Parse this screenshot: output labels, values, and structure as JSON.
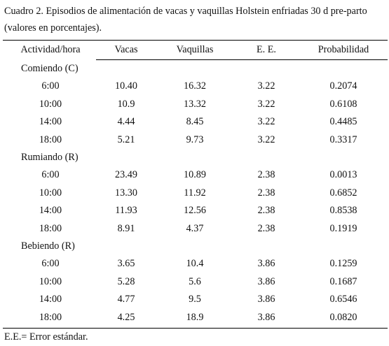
{
  "caption": {
    "line1": "Cuadro 2. Episodios de alimentación de vacas y vaquillas Holstein enfriadas 30 d pre-parto",
    "line2": "(valores en porcentajes)."
  },
  "columns": [
    "Actividad/hora",
    "Vacas",
    "Vaquillas",
    "E. E.",
    "Probabilidad"
  ],
  "groups": [
    {
      "label": "Comiendo (C)",
      "rows": [
        [
          "6:00",
          "10.40",
          "16.32",
          "3.22",
          "0.2074"
        ],
        [
          "10:00",
          "10.9",
          "13.32",
          "3.22",
          "0.6108"
        ],
        [
          "14:00",
          "4.44",
          "8.45",
          "3.22",
          "0.4485"
        ],
        [
          "18:00",
          "5.21",
          "9.73",
          "3.22",
          "0.3317"
        ]
      ]
    },
    {
      "label": "Rumiando (R)",
      "rows": [
        [
          "6:00",
          "23.49",
          "10.89",
          "2.38",
          "0.0013"
        ],
        [
          "10:00",
          "13.30",
          "11.92",
          "2.38",
          "0.6852"
        ],
        [
          "14:00",
          "11.93",
          "12.56",
          "2.38",
          "0.8538"
        ],
        [
          "18:00",
          "8.91",
          "4.37",
          "2.38",
          "0.1919"
        ]
      ]
    },
    {
      "label": "Bebiendo (R)",
      "rows": [
        [
          "6:00",
          "3.65",
          "10.4",
          "3.86",
          "0.1259"
        ],
        [
          "10:00",
          "5.28",
          "5.6",
          "3.86",
          "0.1687"
        ],
        [
          "14:00",
          "4.77",
          "9.5",
          "3.86",
          "0.6546"
        ],
        [
          "18:00",
          "4.25",
          "18.9",
          "3.86",
          "0.0820"
        ]
      ]
    }
  ],
  "footnote": "E.E.= Error estándar."
}
